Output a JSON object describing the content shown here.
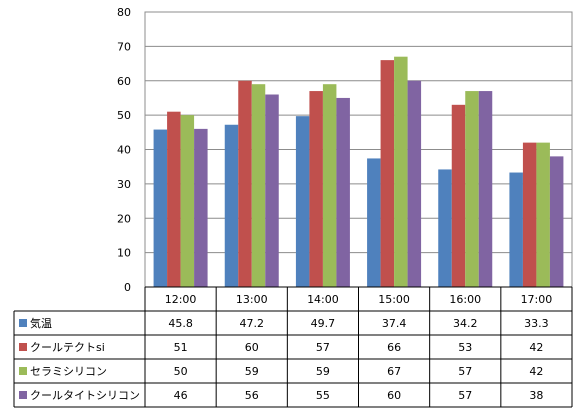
{
  "chart_data": {
    "type": "bar",
    "categories": [
      "12:00",
      "13:00",
      "14:00",
      "15:00",
      "16:00",
      "17:00"
    ],
    "series": [
      {
        "name": "気温",
        "color": "#4f81bd",
        "values": [
          45.8,
          47.2,
          49.7,
          37.4,
          34.2,
          33.3
        ]
      },
      {
        "name": "クールテクトsi",
        "color": "#c0504d",
        "values": [
          51,
          60,
          57,
          66,
          53,
          42
        ]
      },
      {
        "name": "セラミシリコン",
        "color": "#9bbb59",
        "values": [
          50,
          59,
          59,
          67,
          57,
          42
        ]
      },
      {
        "name": "クールタイトシリコン",
        "color": "#8064a2",
        "values": [
          46,
          56,
          55,
          60,
          57,
          38
        ]
      }
    ],
    "ylim": [
      0,
      80
    ],
    "yticks": [
      0,
      10,
      20,
      30,
      40,
      50,
      60,
      70,
      80
    ],
    "grid": true,
    "legend": "data-table-bottom",
    "title": "",
    "xlabel": "",
    "ylabel": ""
  }
}
